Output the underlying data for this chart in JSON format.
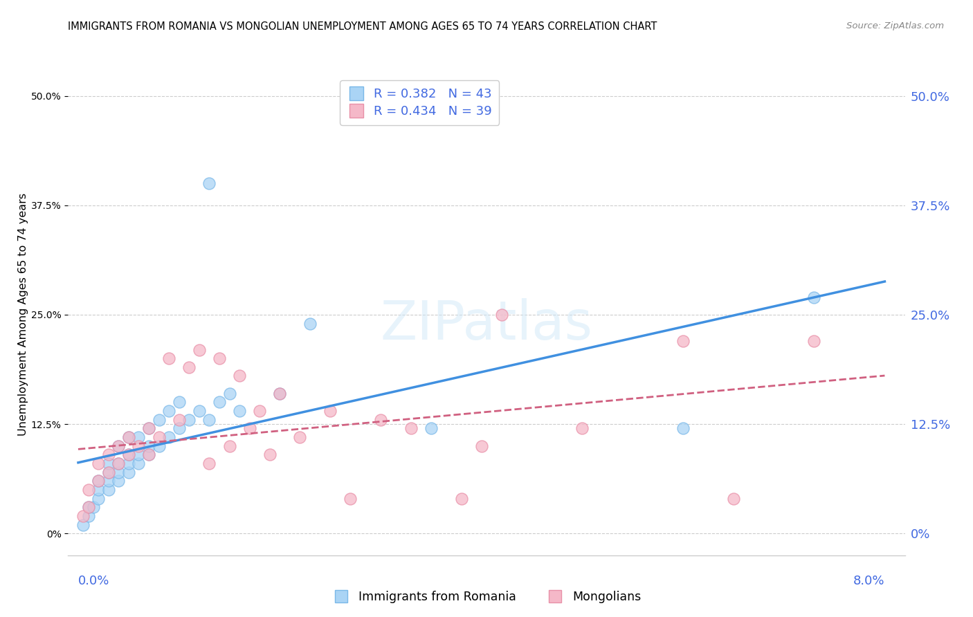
{
  "title": "IMMIGRANTS FROM ROMANIA VS MONGOLIAN UNEMPLOYMENT AMONG AGES 65 TO 74 YEARS CORRELATION CHART",
  "source": "Source: ZipAtlas.com",
  "ylabel": "Unemployment Among Ages 65 to 74 years",
  "ytick_vals": [
    0.0,
    0.125,
    0.25,
    0.375,
    0.5
  ],
  "ytick_labels": [
    "0%",
    "12.5%",
    "25.0%",
    "37.5%",
    "50.0%"
  ],
  "xlim": [
    -0.001,
    0.082
  ],
  "ylim": [
    -0.025,
    0.525
  ],
  "legend_romania_R": "0.382",
  "legend_romania_N": "43",
  "legend_mongolian_R": "0.434",
  "legend_mongolian_N": "39",
  "watermark": "ZIPatlas",
  "color_romania_fill": "#aad4f5",
  "color_romania_edge": "#7ab8e8",
  "color_mongolian_fill": "#f5b8c8",
  "color_mongolian_edge": "#e890a8",
  "color_trend_romania": "#4090e0",
  "color_trend_mongolian": "#d06080",
  "color_axis_text": "#4169E1",
  "color_grid": "#cccccc",
  "romania_x": [
    0.0005,
    0.001,
    0.001,
    0.0015,
    0.002,
    0.002,
    0.002,
    0.003,
    0.003,
    0.003,
    0.003,
    0.004,
    0.004,
    0.004,
    0.004,
    0.005,
    0.005,
    0.005,
    0.005,
    0.006,
    0.006,
    0.006,
    0.007,
    0.007,
    0.007,
    0.008,
    0.008,
    0.009,
    0.009,
    0.01,
    0.01,
    0.011,
    0.012,
    0.013,
    0.013,
    0.014,
    0.015,
    0.016,
    0.02,
    0.023,
    0.035,
    0.06,
    0.073
  ],
  "romania_y": [
    0.01,
    0.02,
    0.03,
    0.03,
    0.04,
    0.05,
    0.06,
    0.05,
    0.06,
    0.07,
    0.08,
    0.06,
    0.07,
    0.08,
    0.1,
    0.07,
    0.08,
    0.09,
    0.11,
    0.08,
    0.09,
    0.11,
    0.09,
    0.1,
    0.12,
    0.1,
    0.13,
    0.11,
    0.14,
    0.12,
    0.15,
    0.13,
    0.14,
    0.13,
    0.4,
    0.15,
    0.16,
    0.14,
    0.16,
    0.24,
    0.12,
    0.12,
    0.27
  ],
  "mongolian_x": [
    0.0005,
    0.001,
    0.001,
    0.002,
    0.002,
    0.003,
    0.003,
    0.004,
    0.004,
    0.005,
    0.005,
    0.006,
    0.007,
    0.007,
    0.008,
    0.009,
    0.01,
    0.011,
    0.012,
    0.013,
    0.014,
    0.015,
    0.016,
    0.017,
    0.018,
    0.019,
    0.02,
    0.022,
    0.025,
    0.027,
    0.03,
    0.033,
    0.038,
    0.04,
    0.042,
    0.05,
    0.06,
    0.065,
    0.073
  ],
  "mongolian_y": [
    0.02,
    0.03,
    0.05,
    0.06,
    0.08,
    0.07,
    0.09,
    0.08,
    0.1,
    0.09,
    0.11,
    0.1,
    0.09,
    0.12,
    0.11,
    0.2,
    0.13,
    0.19,
    0.21,
    0.08,
    0.2,
    0.1,
    0.18,
    0.12,
    0.14,
    0.09,
    0.16,
    0.11,
    0.14,
    0.04,
    0.13,
    0.12,
    0.04,
    0.1,
    0.25,
    0.12,
    0.22,
    0.04,
    0.22
  ]
}
